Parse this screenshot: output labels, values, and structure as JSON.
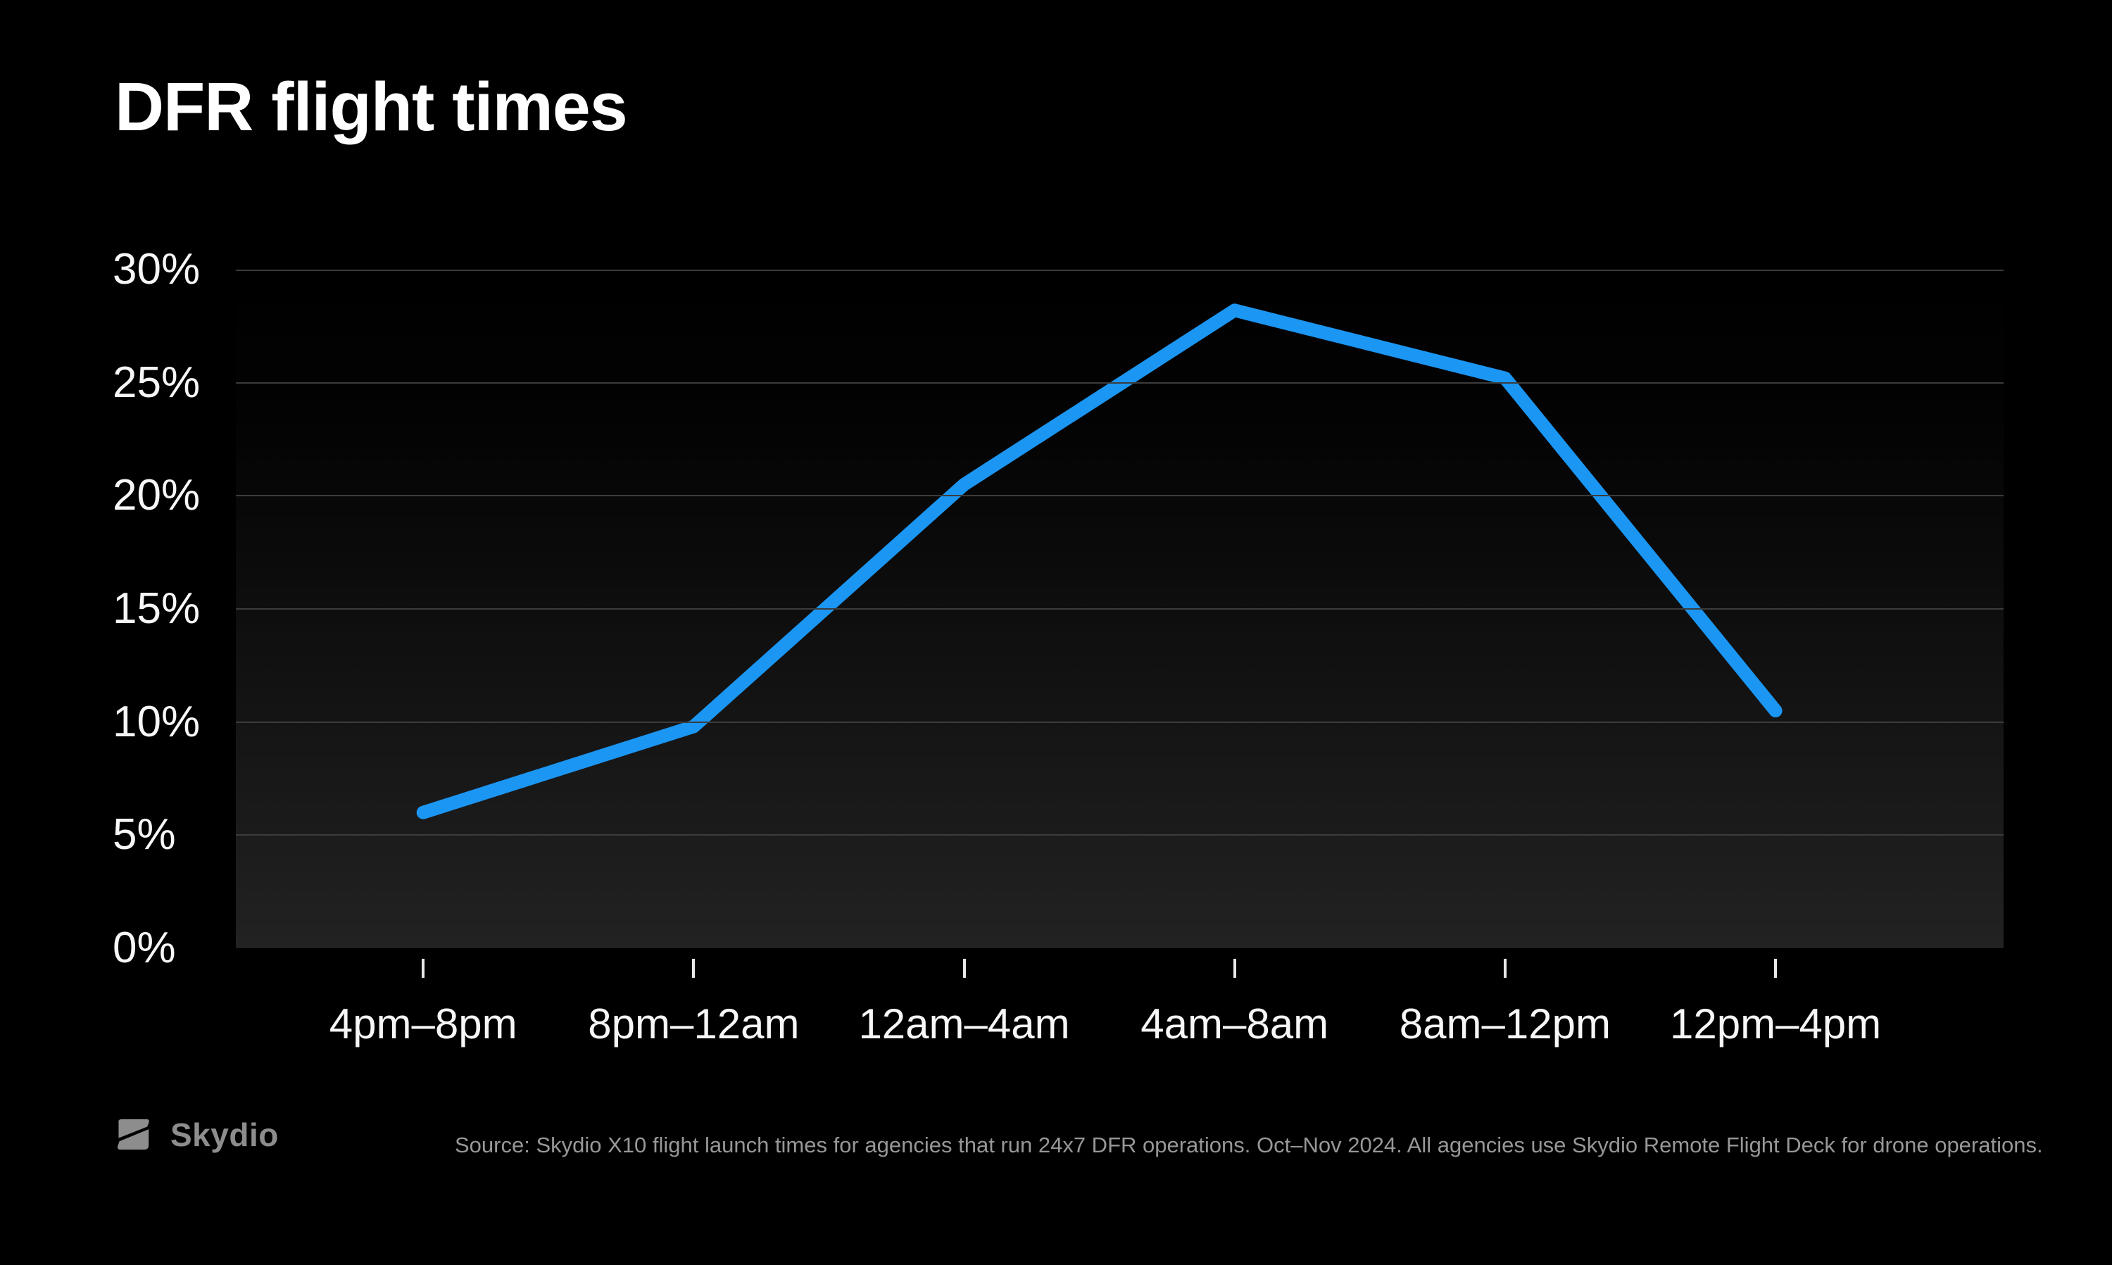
{
  "header": {
    "title": "DFR flight times"
  },
  "chart_data": {
    "type": "line",
    "title": "DFR flight times",
    "categories": [
      "4pm–8pm",
      "8pm–12am",
      "12am–4am",
      "4am–8am",
      "8am–12pm",
      "12pm–4pm"
    ],
    "values": [
      6,
      9.8,
      20.5,
      28.2,
      25.2,
      10.5
    ],
    "unit": "%",
    "xlabel": "",
    "ylabel": "",
    "ylim": [
      0,
      30
    ],
    "y_tick_step": 5,
    "y_tick_labels": [
      "0%",
      "5%",
      "10%",
      "15%",
      "20%",
      "25%",
      "30%"
    ],
    "grid": "horizontal",
    "legend": "none",
    "line_color": "#1b96f3",
    "layout": {
      "x_start_frac": 0.106,
      "x_step_frac": 0.153
    }
  },
  "footer": {
    "logo_text": "Skydio",
    "source_text": "Source: Skydio X10 flight launch times for agencies that run 24x7 DFR operations. Oct–Nov 2024. All agencies use Skydio Remote Flight Deck for drone operations."
  },
  "colors": {
    "background": "#000000",
    "title": "#ffffff",
    "axis_text": "#f7f7f7",
    "gridline": "#3c3c3c",
    "tick": "#e8e8e8",
    "line": "#1b96f3",
    "footer_text": "#979797",
    "logo": "#8d8d8d"
  }
}
